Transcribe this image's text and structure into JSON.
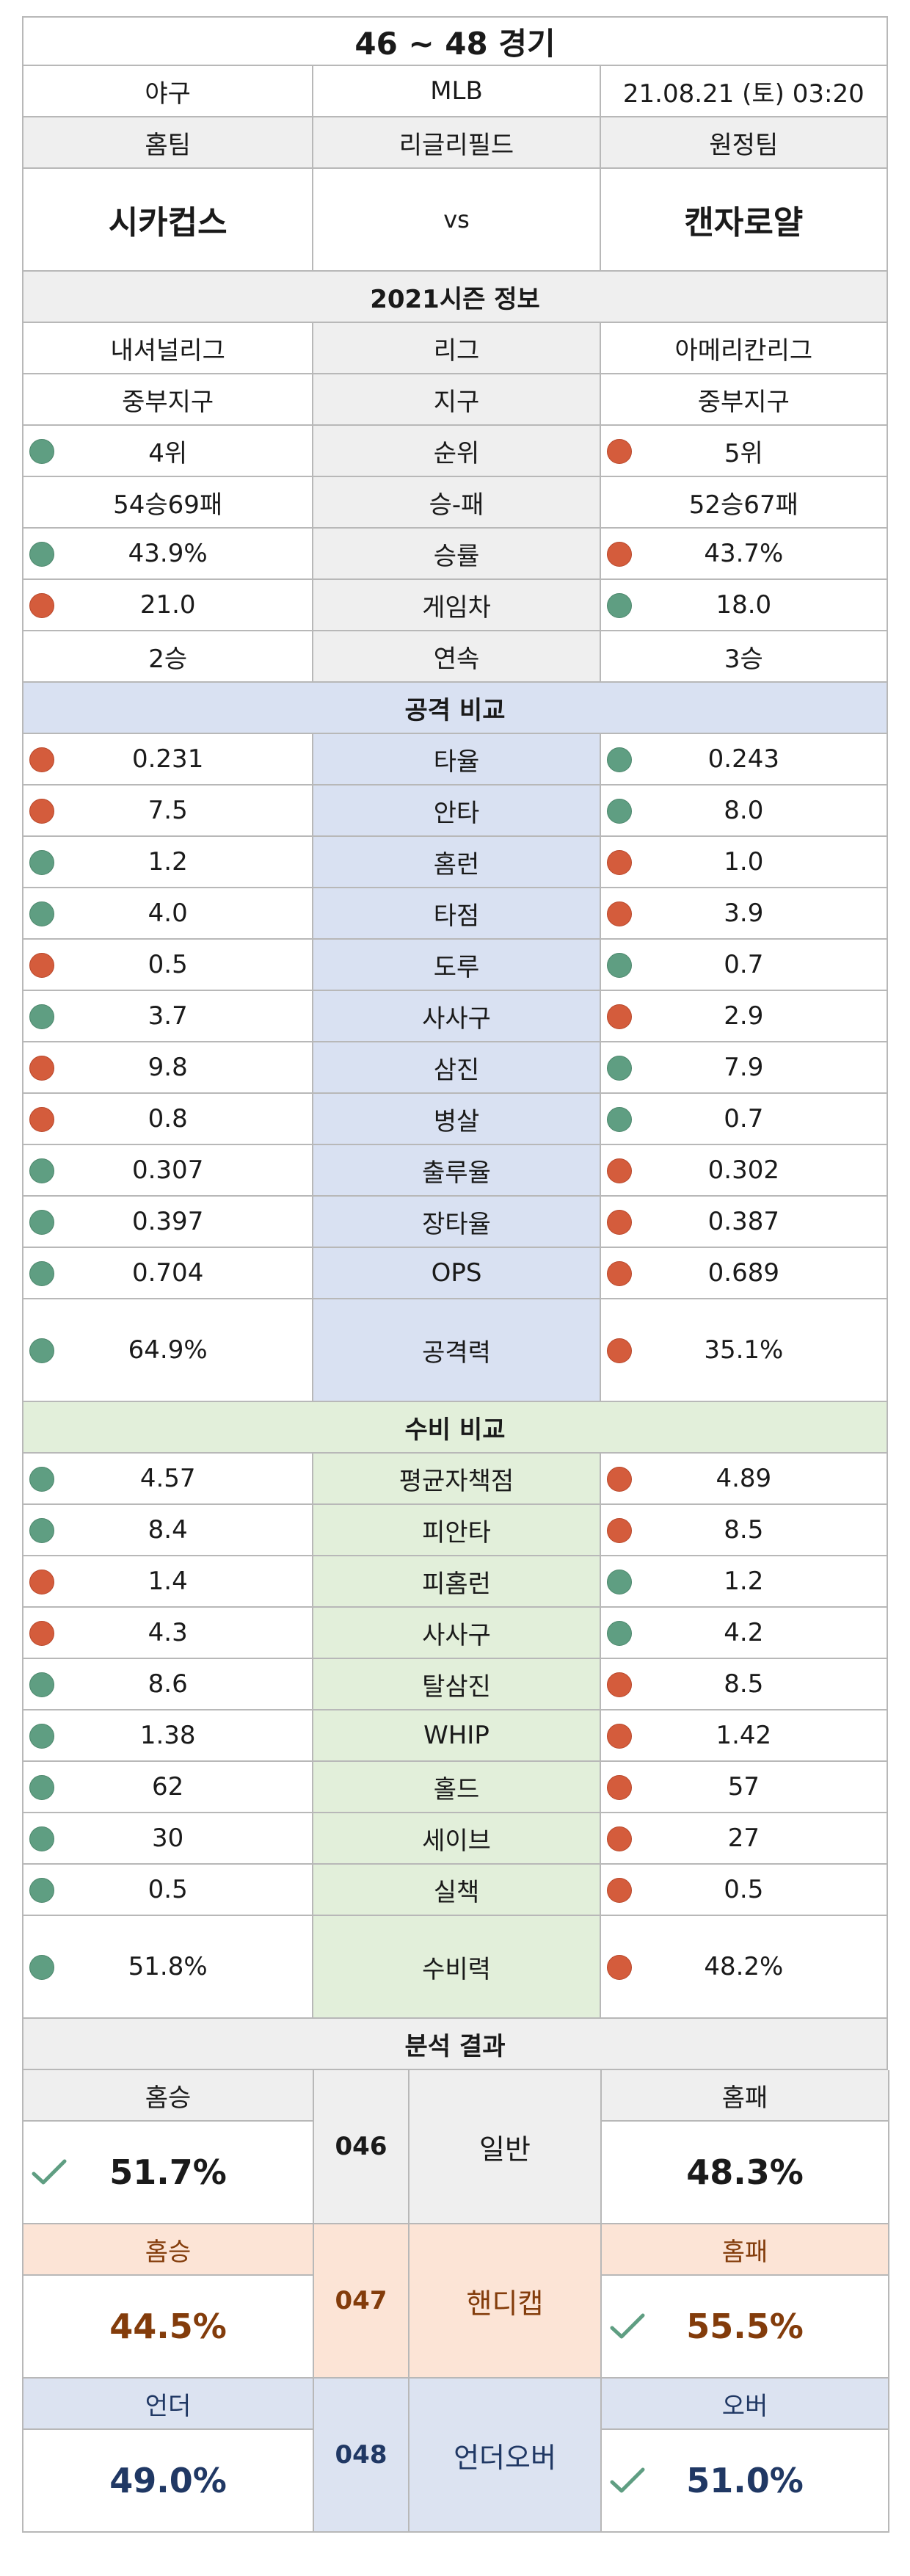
{
  "header": {
    "title": "46 ~ 48 경기"
  },
  "info": {
    "sport": "야구",
    "league": "MLB",
    "datetime": "21.08.21 (토) 03:20"
  },
  "labels": {
    "home": "홈팀",
    "stadium": "리글리필드",
    "away": "원정팀"
  },
  "teams": {
    "home": "시카컵스",
    "vs": "vs",
    "away": "캔자로얄"
  },
  "season": {
    "title": "2021시즌 정보",
    "rows": [
      {
        "home": "내셔널리그",
        "label": "리그",
        "away": "아메리칸리그",
        "home_dot": "",
        "away_dot": ""
      },
      {
        "home": "중부지구",
        "label": "지구",
        "away": "중부지구",
        "home_dot": "",
        "away_dot": ""
      },
      {
        "home": "4위",
        "label": "순위",
        "away": "5위",
        "home_dot": "green",
        "away_dot": "red"
      },
      {
        "home": "54승69패",
        "label": "승-패",
        "away": "52승67패",
        "home_dot": "",
        "away_dot": ""
      },
      {
        "home": "43.9%",
        "label": "승률",
        "away": "43.7%",
        "home_dot": "green",
        "away_dot": "red"
      },
      {
        "home": "21.0",
        "label": "게임차",
        "away": "18.0",
        "home_dot": "red",
        "away_dot": "green"
      },
      {
        "home": "2승",
        "label": "연속",
        "away": "3승",
        "home_dot": "",
        "away_dot": ""
      }
    ]
  },
  "attack": {
    "title": "공격 비교",
    "rows": [
      {
        "home": "0.231",
        "label": "타율",
        "away": "0.243",
        "home_dot": "red",
        "away_dot": "green"
      },
      {
        "home": "7.5",
        "label": "안타",
        "away": "8.0",
        "home_dot": "red",
        "away_dot": "green"
      },
      {
        "home": "1.2",
        "label": "홈런",
        "away": "1.0",
        "home_dot": "green",
        "away_dot": "red"
      },
      {
        "home": "4.0",
        "label": "타점",
        "away": "3.9",
        "home_dot": "green",
        "away_dot": "red"
      },
      {
        "home": "0.5",
        "label": "도루",
        "away": "0.7",
        "home_dot": "red",
        "away_dot": "green"
      },
      {
        "home": "3.7",
        "label": "사사구",
        "away": "2.9",
        "home_dot": "green",
        "away_dot": "red"
      },
      {
        "home": "9.8",
        "label": "삼진",
        "away": "7.9",
        "home_dot": "red",
        "away_dot": "green"
      },
      {
        "home": "0.8",
        "label": "병살",
        "away": "0.7",
        "home_dot": "red",
        "away_dot": "green"
      },
      {
        "home": "0.307",
        "label": "출루율",
        "away": "0.302",
        "home_dot": "green",
        "away_dot": "red"
      },
      {
        "home": "0.397",
        "label": "장타율",
        "away": "0.387",
        "home_dot": "green",
        "away_dot": "red"
      },
      {
        "home": "0.704",
        "label": "OPS",
        "away": "0.689",
        "home_dot": "green",
        "away_dot": "red"
      }
    ],
    "power": {
      "home": "64.9%",
      "label": "공격력",
      "away": "35.1%",
      "home_dot": "green",
      "away_dot": "red"
    }
  },
  "defense": {
    "title": "수비 비교",
    "rows": [
      {
        "home": "4.57",
        "label": "평균자책점",
        "away": "4.89",
        "home_dot": "green",
        "away_dot": "red"
      },
      {
        "home": "8.4",
        "label": "피안타",
        "away": "8.5",
        "home_dot": "green",
        "away_dot": "red"
      },
      {
        "home": "1.4",
        "label": "피홈런",
        "away": "1.2",
        "home_dot": "red",
        "away_dot": "green"
      },
      {
        "home": "4.3",
        "label": "사사구",
        "away": "4.2",
        "home_dot": "red",
        "away_dot": "green"
      },
      {
        "home": "8.6",
        "label": "탈삼진",
        "away": "8.5",
        "home_dot": "green",
        "away_dot": "red"
      },
      {
        "home": "1.38",
        "label": "WHIP",
        "away": "1.42",
        "home_dot": "green",
        "away_dot": "red"
      },
      {
        "home": "62",
        "label": "홀드",
        "away": "57",
        "home_dot": "green",
        "away_dot": "red"
      },
      {
        "home": "30",
        "label": "세이브",
        "away": "27",
        "home_dot": "green",
        "away_dot": "red"
      },
      {
        "home": "0.5",
        "label": "실책",
        "away": "0.5",
        "home_dot": "green",
        "away_dot": "red"
      }
    ],
    "power": {
      "home": "51.8%",
      "label": "수비력",
      "away": "48.2%",
      "home_dot": "green",
      "away_dot": "red"
    }
  },
  "analysis": {
    "title": "분석 결과",
    "blocks": [
      {
        "left_label": "홈승",
        "left_value": "51.7%",
        "num": "046",
        "type": "일반",
        "right_label": "홈패",
        "right_value": "48.3%",
        "pick": "left",
        "theme": "gray"
      },
      {
        "left_label": "홈승",
        "left_value": "44.5%",
        "num": "047",
        "type": "핸디캡",
        "right_label": "홈패",
        "right_value": "55.5%",
        "pick": "right",
        "theme": "peach"
      },
      {
        "left_label": "언더",
        "left_value": "49.0%",
        "num": "048",
        "type": "언더오버",
        "right_label": "오버",
        "right_value": "51.0%",
        "pick": "right",
        "theme": "navy"
      }
    ]
  },
  "colors": {
    "dot_green": "#5f9e82",
    "dot_red": "#d45c3c",
    "check": "#5f9e82",
    "attack_bg": "#d9e1f2",
    "defense_bg": "#e2efda",
    "handicap_bg": "#fce4d6",
    "handicap_text": "#833c0b",
    "ou_text": "#203864"
  }
}
